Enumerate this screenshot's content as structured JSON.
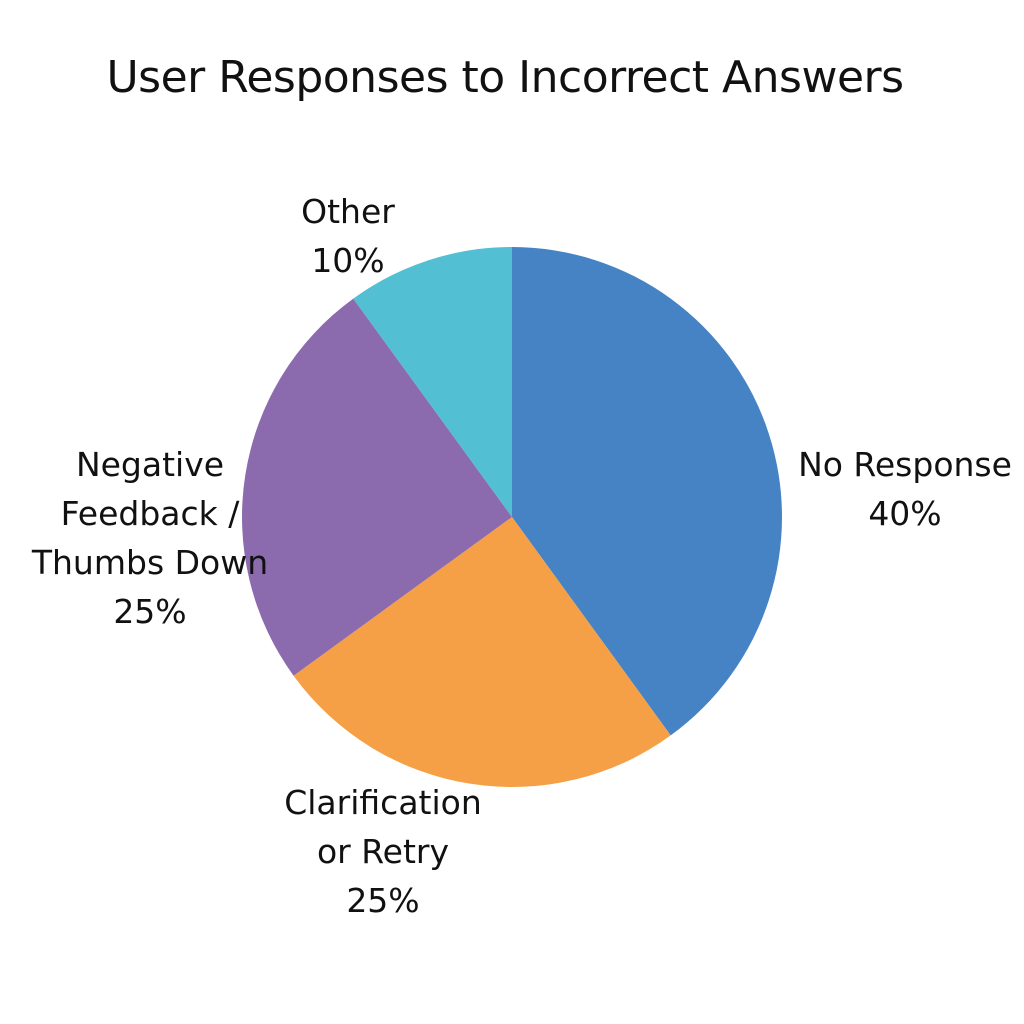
{
  "chart_data": {
    "type": "pie",
    "title": "User Responses to Incorrect Answers",
    "slices": [
      {
        "name": "No Response",
        "value": 40,
        "label_lines": [
          "No Response",
          "40%"
        ],
        "color": "#4583C4"
      },
      {
        "name": "Clarification or Retry",
        "value": 25,
        "label_lines": [
          "Clarification",
          "or Retry",
          "25%"
        ],
        "color": "#F5A046"
      },
      {
        "name": "Negative Feedback / Thumbs Down",
        "value": 25,
        "label_lines": [
          "Negative",
          "Feedback /",
          "Thumbs Down",
          "25%"
        ],
        "color": "#8C6AAE"
      },
      {
        "name": "Other",
        "value": 10,
        "label_lines": [
          "Other",
          "10%"
        ],
        "color": "#52BFD3"
      }
    ],
    "legend": "none"
  }
}
